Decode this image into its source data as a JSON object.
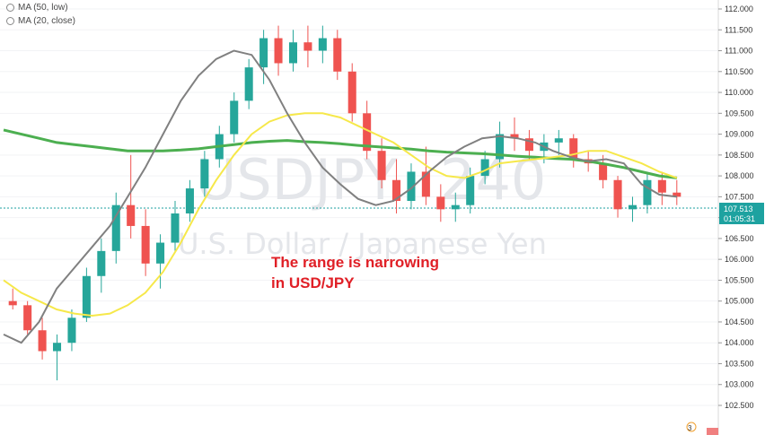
{
  "indicators": [
    {
      "label": "MA (50, low)"
    },
    {
      "label": "MA (20, close)"
    }
  ],
  "watermark": {
    "symbol": "USDJPY",
    "interval": "240",
    "description": "U.S. Dollar / Japanese Yen"
  },
  "annotation": {
    "line1": "The range is narrowing",
    "line2": "in USD/JPY"
  },
  "last_price": {
    "value": "107.513",
    "countdown": "01:05:31",
    "color": "#1ea2a0"
  },
  "bottom_badge": {
    "text": "3"
  },
  "colors": {
    "up": "#26a69a",
    "down": "#ef5350",
    "ma_yellow": "#f6e84a",
    "ma_gray": "#808080",
    "ma_green": "#4caf50",
    "annotation": "#e01f26"
  },
  "chart_data": {
    "type": "candlestick",
    "symbol": "USDJPY",
    "timeframe": "240",
    "ylim": [
      102.5,
      112.0
    ],
    "y_ticks": [
      "112.000",
      "111.500",
      "111.000",
      "110.500",
      "110.000",
      "109.500",
      "109.000",
      "108.500",
      "108.000",
      "107.500",
      "107.000",
      "106.500",
      "106.000",
      "105.500",
      "105.000",
      "104.500",
      "104.000",
      "103.500",
      "103.000",
      "102.500"
    ],
    "series": [
      {
        "name": "MA (50, low)",
        "kind": "line",
        "color": "#f6e84a"
      },
      {
        "name": "MA (20, close)",
        "kind": "line",
        "color": "#808080"
      }
    ],
    "ma50_low": [
      105.5,
      105.2,
      105.0,
      104.8,
      104.7,
      104.65,
      104.7,
      104.9,
      105.2,
      105.7,
      106.4,
      107.2,
      107.9,
      108.5,
      109.0,
      109.3,
      109.45,
      109.5,
      109.5,
      109.4,
      109.2,
      109.0,
      108.8,
      108.5,
      108.2,
      108.0,
      107.95,
      108.1,
      108.3,
      108.35,
      108.4,
      108.45,
      108.5,
      108.6,
      108.6,
      108.45,
      108.3,
      108.1,
      107.95
    ],
    "ma20_close": [
      104.2,
      104.0,
      104.5,
      105.3,
      105.8,
      106.3,
      106.8,
      107.5,
      108.2,
      109.0,
      109.8,
      110.4,
      110.8,
      111.0,
      110.9,
      110.3,
      109.5,
      108.8,
      108.2,
      107.8,
      107.45,
      107.3,
      107.4,
      107.7,
      108.1,
      108.45,
      108.7,
      108.9,
      108.95,
      108.9,
      108.8,
      108.6,
      108.45,
      108.35,
      108.4,
      108.3,
      107.8,
      107.55,
      107.5
    ],
    "ma_long_green": [
      109.1,
      109.0,
      108.9,
      108.8,
      108.75,
      108.7,
      108.65,
      108.6,
      108.6,
      108.6,
      108.62,
      108.65,
      108.7,
      108.75,
      108.8,
      108.83,
      108.85,
      108.82,
      108.8,
      108.77,
      108.73,
      108.7,
      108.67,
      108.64,
      108.6,
      108.57,
      108.55,
      108.53,
      108.5,
      108.47,
      108.45,
      108.42,
      108.4,
      108.35,
      108.28,
      108.2,
      108.1,
      108.0,
      107.95
    ],
    "candles": [
      {
        "o": 105.0,
        "h": 105.3,
        "l": 104.8,
        "c": 104.9
      },
      {
        "o": 104.9,
        "h": 105.0,
        "l": 104.2,
        "c": 104.3
      },
      {
        "o": 104.3,
        "h": 104.6,
        "l": 103.6,
        "c": 103.8
      },
      {
        "o": 103.8,
        "h": 104.2,
        "l": 103.1,
        "c": 104.0
      },
      {
        "o": 104.0,
        "h": 104.8,
        "l": 103.8,
        "c": 104.6
      },
      {
        "o": 104.6,
        "h": 105.8,
        "l": 104.5,
        "c": 105.6
      },
      {
        "o": 105.6,
        "h": 106.5,
        "l": 105.2,
        "c": 106.2
      },
      {
        "o": 106.2,
        "h": 107.6,
        "l": 105.9,
        "c": 107.3
      },
      {
        "o": 107.3,
        "h": 108.5,
        "l": 106.5,
        "c": 106.8
      },
      {
        "o": 106.8,
        "h": 107.2,
        "l": 105.6,
        "c": 105.9
      },
      {
        "o": 105.9,
        "h": 106.6,
        "l": 105.3,
        "c": 106.4
      },
      {
        "o": 106.4,
        "h": 107.4,
        "l": 106.2,
        "c": 107.1
      },
      {
        "o": 107.1,
        "h": 107.9,
        "l": 106.9,
        "c": 107.7
      },
      {
        "o": 107.7,
        "h": 108.6,
        "l": 107.5,
        "c": 108.4
      },
      {
        "o": 108.4,
        "h": 109.2,
        "l": 108.2,
        "c": 109.0
      },
      {
        "o": 109.0,
        "h": 110.0,
        "l": 108.8,
        "c": 109.8
      },
      {
        "o": 109.8,
        "h": 110.8,
        "l": 109.6,
        "c": 110.6
      },
      {
        "o": 110.6,
        "h": 111.5,
        "l": 110.2,
        "c": 111.3
      },
      {
        "o": 111.3,
        "h": 111.6,
        "l": 110.4,
        "c": 110.7
      },
      {
        "o": 110.7,
        "h": 111.5,
        "l": 110.5,
        "c": 111.2
      },
      {
        "o": 111.2,
        "h": 111.6,
        "l": 110.6,
        "c": 111.0
      },
      {
        "o": 111.0,
        "h": 111.6,
        "l": 110.7,
        "c": 111.3
      },
      {
        "o": 111.3,
        "h": 111.5,
        "l": 110.3,
        "c": 110.5
      },
      {
        "o": 110.5,
        "h": 110.7,
        "l": 109.3,
        "c": 109.5
      },
      {
        "o": 109.5,
        "h": 109.8,
        "l": 108.4,
        "c": 108.6
      },
      {
        "o": 108.6,
        "h": 108.9,
        "l": 107.7,
        "c": 107.9
      },
      {
        "o": 107.9,
        "h": 108.4,
        "l": 107.1,
        "c": 107.4
      },
      {
        "o": 107.4,
        "h": 108.3,
        "l": 107.2,
        "c": 108.1
      },
      {
        "o": 108.1,
        "h": 108.7,
        "l": 107.3,
        "c": 107.5
      },
      {
        "o": 107.5,
        "h": 107.8,
        "l": 106.9,
        "c": 107.2
      },
      {
        "o": 107.2,
        "h": 107.6,
        "l": 106.9,
        "c": 107.3
      },
      {
        "o": 107.3,
        "h": 108.2,
        "l": 107.1,
        "c": 108.0
      },
      {
        "o": 108.0,
        "h": 108.6,
        "l": 107.8,
        "c": 108.4
      },
      {
        "o": 108.4,
        "h": 109.3,
        "l": 108.2,
        "c": 109.0
      },
      {
        "o": 109.0,
        "h": 109.4,
        "l": 108.6,
        "c": 108.9
      },
      {
        "o": 108.9,
        "h": 109.1,
        "l": 108.4,
        "c": 108.6
      },
      {
        "o": 108.6,
        "h": 109.0,
        "l": 108.3,
        "c": 108.8
      },
      {
        "o": 108.8,
        "h": 109.1,
        "l": 108.5,
        "c": 108.9
      },
      {
        "o": 108.9,
        "h": 109.0,
        "l": 108.2,
        "c": 108.4
      },
      {
        "o": 108.4,
        "h": 108.6,
        "l": 108.1,
        "c": 108.3
      },
      {
        "o": 108.3,
        "h": 108.5,
        "l": 107.7,
        "c": 107.9
      },
      {
        "o": 107.9,
        "h": 108.0,
        "l": 107.0,
        "c": 107.2
      },
      {
        "o": 107.2,
        "h": 107.5,
        "l": 106.9,
        "c": 107.3
      },
      {
        "o": 107.3,
        "h": 108.1,
        "l": 107.1,
        "c": 107.9
      },
      {
        "o": 107.9,
        "h": 108.1,
        "l": 107.3,
        "c": 107.6
      },
      {
        "o": 107.6,
        "h": 107.9,
        "l": 107.3,
        "c": 107.5
      }
    ]
  }
}
